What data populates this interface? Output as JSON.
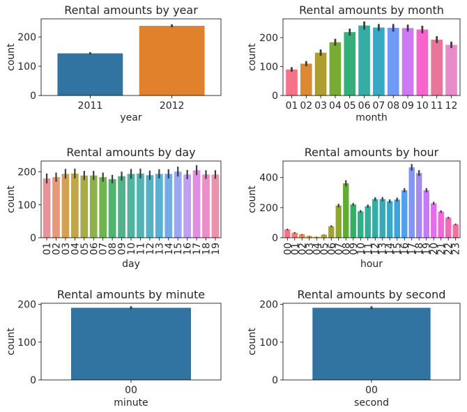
{
  "chart_data": [
    {
      "type": "bar",
      "title": "Rental amounts by year",
      "xlabel": "year",
      "ylabel": "count",
      "ylim": [
        0,
        262
      ],
      "yticks": [
        0,
        100,
        200
      ],
      "tick_rotation": 0,
      "categories": [
        "2011",
        "2012"
      ],
      "values": [
        144,
        238
      ],
      "errors": [
        4,
        5
      ],
      "colors": [
        "#3274a1",
        "#e1812c"
      ]
    },
    {
      "type": "bar",
      "title": "Rental amounts by month",
      "xlabel": "month",
      "ylabel": "count",
      "ylim": [
        0,
        265
      ],
      "yticks": [
        0,
        100,
        200
      ],
      "tick_rotation": 0,
      "categories": [
        "01",
        "02",
        "03",
        "04",
        "05",
        "06",
        "07",
        "08",
        "09",
        "10",
        "11",
        "12"
      ],
      "values": [
        90,
        110,
        148,
        184,
        219,
        242,
        235,
        234,
        233,
        228,
        193,
        175
      ],
      "errors": [
        8,
        9,
        11,
        12,
        12,
        14,
        12,
        13,
        12,
        13,
        12,
        11
      ],
      "colors": [
        "#f77189",
        "#dc8932",
        "#ae9d31",
        "#77ab31",
        "#33b07a",
        "#36ada4",
        "#38a9c5",
        "#6e9bf4",
        "#cc7af4",
        "#f565cc",
        "#e8769b",
        "#e98acb"
      ]
    },
    {
      "type": "bar",
      "title": "Rental amounts by day",
      "xlabel": "day",
      "ylabel": "count",
      "ylim": [
        0,
        233
      ],
      "yticks": [
        0,
        100,
        200
      ],
      "tick_rotation": -90,
      "categories": [
        "01",
        "02",
        "03",
        "04",
        "05",
        "06",
        "07",
        "08",
        "09",
        "10",
        "11",
        "12",
        "13",
        "14",
        "15",
        "16",
        "17",
        "18",
        "19"
      ],
      "values": [
        180,
        184,
        194,
        195,
        189,
        189,
        184,
        178,
        187,
        194,
        195,
        190,
        194,
        194,
        201,
        192,
        205,
        192,
        192
      ],
      "errors": [
        15,
        14,
        15,
        15,
        14,
        14,
        14,
        13,
        14,
        15,
        15,
        14,
        14,
        14,
        15,
        14,
        15,
        13,
        13
      ],
      "colors": [
        "#e8929c",
        "#e69a78",
        "#d59f58",
        "#c1a64c",
        "#a9ab4a",
        "#90b04c",
        "#6cb54f",
        "#4fb56e",
        "#4fb48a",
        "#51b4a0",
        "#52b3b2",
        "#53b2c2",
        "#56b1d4",
        "#70acea",
        "#9aa7f2",
        "#bea0ef",
        "#e08fe6",
        "#ec8ec8",
        "#e993ad"
      ]
    },
    {
      "type": "bar",
      "title": "Rental amounts by hour",
      "xlabel": "hour",
      "ylabel": "count",
      "ylim": [
        0,
        510
      ],
      "yticks": [
        0,
        200,
        400
      ],
      "tick_rotation": -90,
      "categories": [
        "00",
        "01",
        "02",
        "03",
        "04",
        "05",
        "06",
        "07",
        "08",
        "09",
        "10",
        "11",
        "12",
        "13",
        "14",
        "15",
        "16",
        "17",
        "18",
        "19",
        "20",
        "21",
        "22",
        "23"
      ],
      "values": [
        55,
        33,
        22,
        11,
        6,
        20,
        76,
        214,
        362,
        221,
        175,
        210,
        257,
        257,
        243,
        254,
        316,
        468,
        430,
        316,
        229,
        174,
        133,
        89
      ],
      "errors": [
        5,
        4,
        3,
        2,
        1,
        2,
        6,
        12,
        20,
        10,
        9,
        11,
        12,
        13,
        12,
        13,
        14,
        22,
        20,
        14,
        10,
        8,
        6,
        5
      ],
      "colors": [
        "#f77189",
        "#f27c6a",
        "#e7874a",
        "#d79330",
        "#c89b31",
        "#b89f31",
        "#a3a332",
        "#8aa832",
        "#5fae32",
        "#33b065",
        "#34ae86",
        "#35ad98",
        "#36aca7",
        "#37aab5",
        "#38a8c4",
        "#3aa5d6",
        "#53a0ee",
        "#8396f4",
        "#a789f4",
        "#c47bf4",
        "#e46ef0",
        "#f465d7",
        "#f56ab8",
        "#f66fa0"
      ]
    },
    {
      "type": "bar",
      "title": "Rental amounts by minute",
      "xlabel": "minute",
      "ylabel": "count",
      "ylim": [
        0,
        203
      ],
      "yticks": [
        0,
        100,
        200
      ],
      "tick_rotation": 0,
      "categories": [
        "00"
      ],
      "values": [
        191
      ],
      "errors": [
        4
      ],
      "colors": [
        "#3274a1"
      ]
    },
    {
      "type": "bar",
      "title": "Rental amounts by second",
      "xlabel": "second",
      "ylabel": "count",
      "ylim": [
        0,
        203
      ],
      "yticks": [
        0,
        100,
        200
      ],
      "tick_rotation": 0,
      "categories": [
        "00"
      ],
      "values": [
        191
      ],
      "errors": [
        4
      ],
      "colors": [
        "#3274a1"
      ]
    }
  ]
}
